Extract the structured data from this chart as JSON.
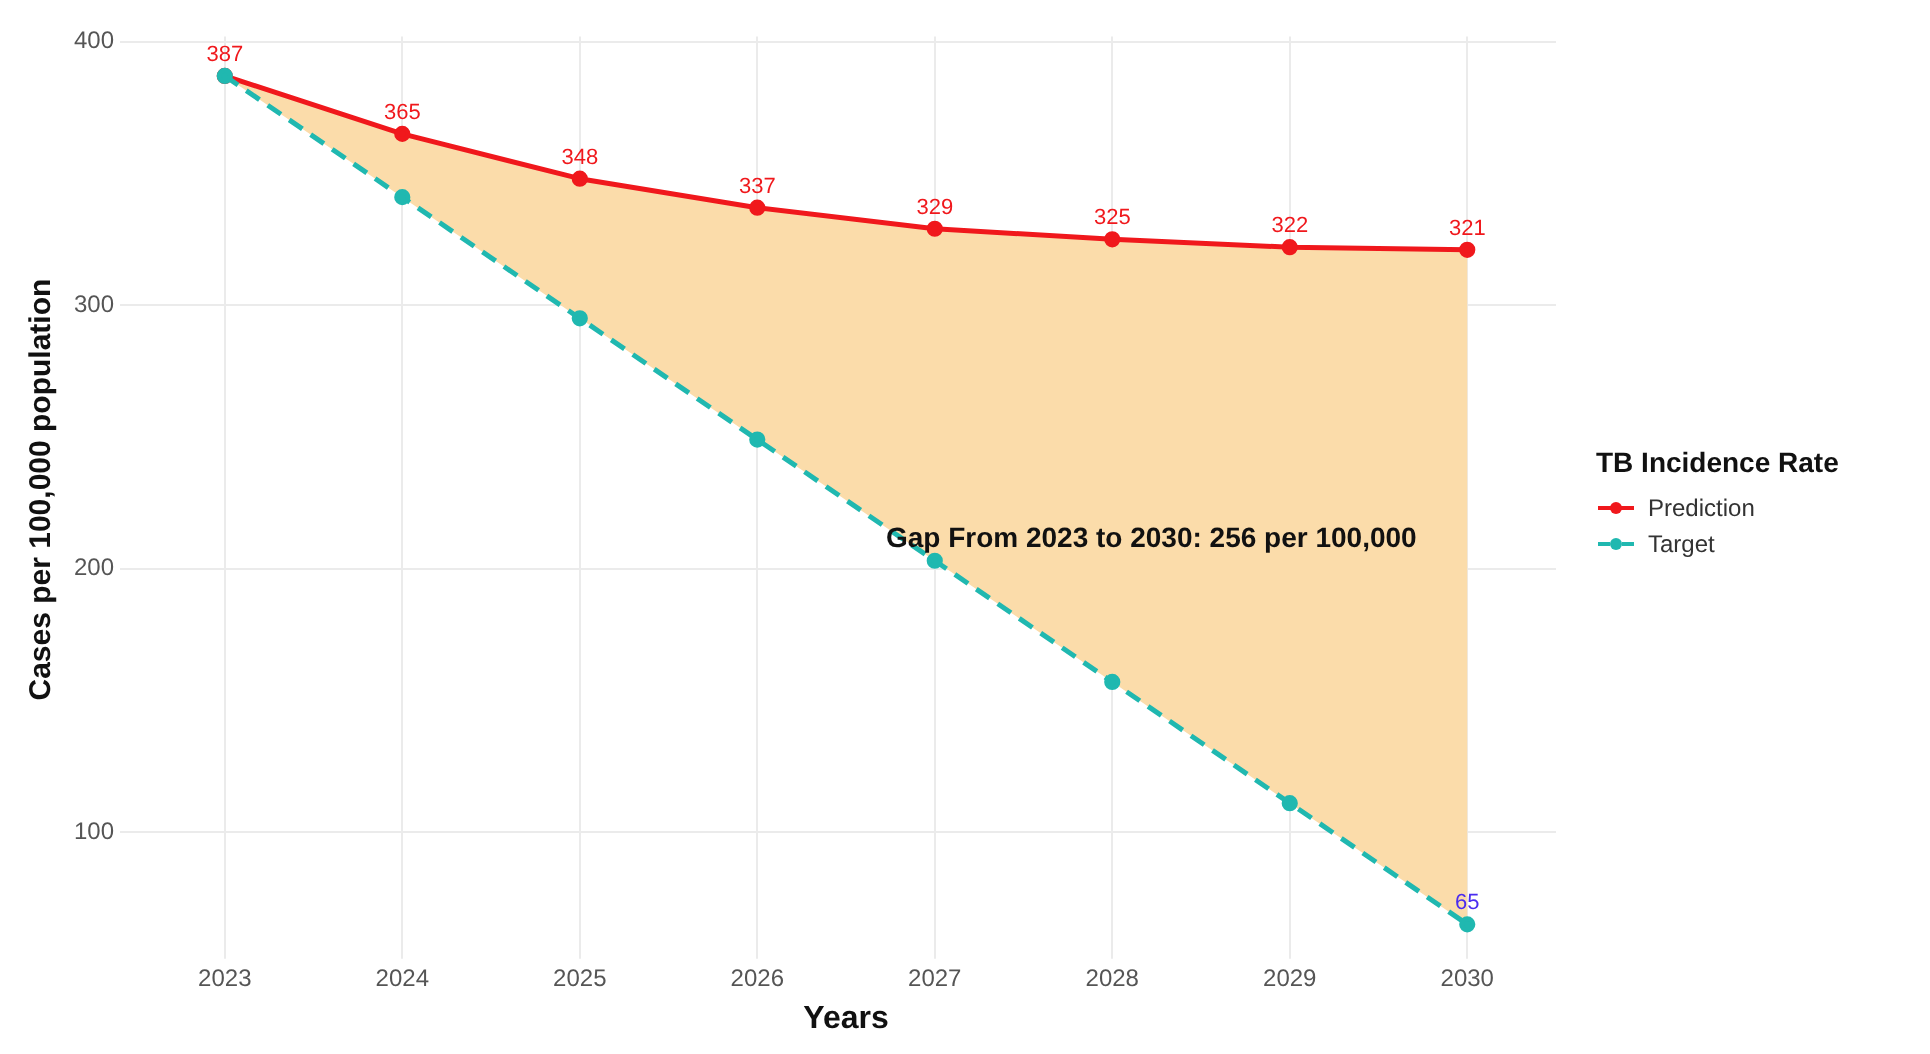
{
  "chart_data": {
    "type": "line",
    "xlabel": "Years",
    "ylabel": "Cases per 100,000 population",
    "legend_title": "TB Incidence Rate",
    "categories": [
      "2023",
      "2024",
      "2025",
      "2026",
      "2027",
      "2028",
      "2029",
      "2030"
    ],
    "series": [
      {
        "name": "Prediction",
        "color": "#f0181c",
        "line_style": "solid",
        "values": [
          387,
          365,
          348,
          337,
          329,
          325,
          322,
          321
        ],
        "value_labels": [
          "387",
          "365",
          "348",
          "337",
          "329",
          "325",
          "322",
          "321"
        ]
      },
      {
        "name": "Target",
        "color": "#20b8b0",
        "line_style": "dashed",
        "values": [
          387,
          341,
          295,
          249,
          203,
          157,
          111,
          65
        ],
        "value_labels": [
          null,
          null,
          null,
          null,
          null,
          null,
          null,
          "65"
        ],
        "lower": [
          387,
          341,
          295,
          249,
          203,
          157,
          111,
          65
        ],
        "upper": [
          387,
          365,
          348,
          337,
          329,
          325,
          322,
          321
        ]
      }
    ],
    "annotations": [
      "Gap From 2023 to 2030: 256 per 100,000"
    ],
    "ylim": [
      58,
      402
    ],
    "yticks": [
      100,
      200,
      300,
      400
    ],
    "grid": true,
    "legend": "right",
    "marker": "circle"
  }
}
